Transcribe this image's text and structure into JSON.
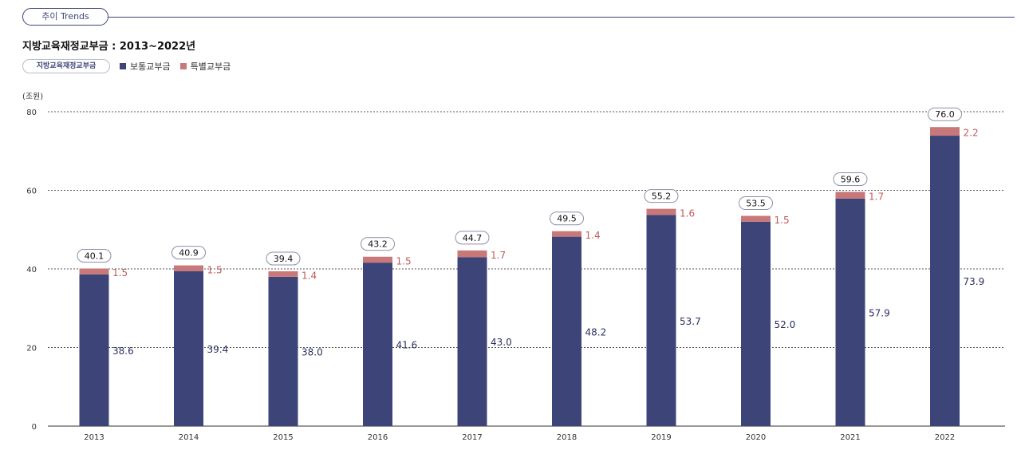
{
  "header": {
    "tab_label": "추이 Trends"
  },
  "chart_data": {
    "type": "bar",
    "stacked": true,
    "title": "지방교육재정교부금 : 2013~2022년",
    "legend_group_label": "지방교육재정교부금",
    "unit_label": "(조원)",
    "categories": [
      "2013",
      "2014",
      "2015",
      "2016",
      "2017",
      "2018",
      "2019",
      "2020",
      "2021",
      "2022"
    ],
    "series": [
      {
        "name": "보통교부금",
        "color": "#3d4578",
        "values": [
          38.6,
          39.4,
          38.0,
          41.6,
          43.0,
          48.2,
          53.7,
          52.0,
          57.9,
          73.9
        ],
        "labels": [
          "38.6",
          "39.4",
          "38.0",
          "41.6",
          "43.0",
          "48.2",
          "53.7",
          "52.0",
          "57.9",
          "73.9"
        ]
      },
      {
        "name": "특별교부금",
        "color": "#c9787a",
        "values": [
          1.5,
          1.5,
          1.4,
          1.5,
          1.7,
          1.4,
          1.6,
          1.5,
          1.7,
          2.2
        ],
        "labels": [
          "1.5",
          "1.5",
          "1.4",
          "1.5",
          "1.7",
          "1.4",
          "1.6",
          "1.5",
          "1.7",
          "2.2"
        ]
      }
    ],
    "totals": [
      "40.1",
      "40.9",
      "39.4",
      "43.2",
      "44.7",
      "49.5",
      "55.2",
      "53.5",
      "59.6",
      "76.0"
    ],
    "ylim": [
      0,
      80
    ],
    "yticks": [
      0,
      20,
      40,
      60,
      80
    ],
    "ytick_labels": [
      "0",
      "20",
      "40",
      "60",
      "80"
    ],
    "grid": true,
    "xlabel": "",
    "ylabel": ""
  }
}
